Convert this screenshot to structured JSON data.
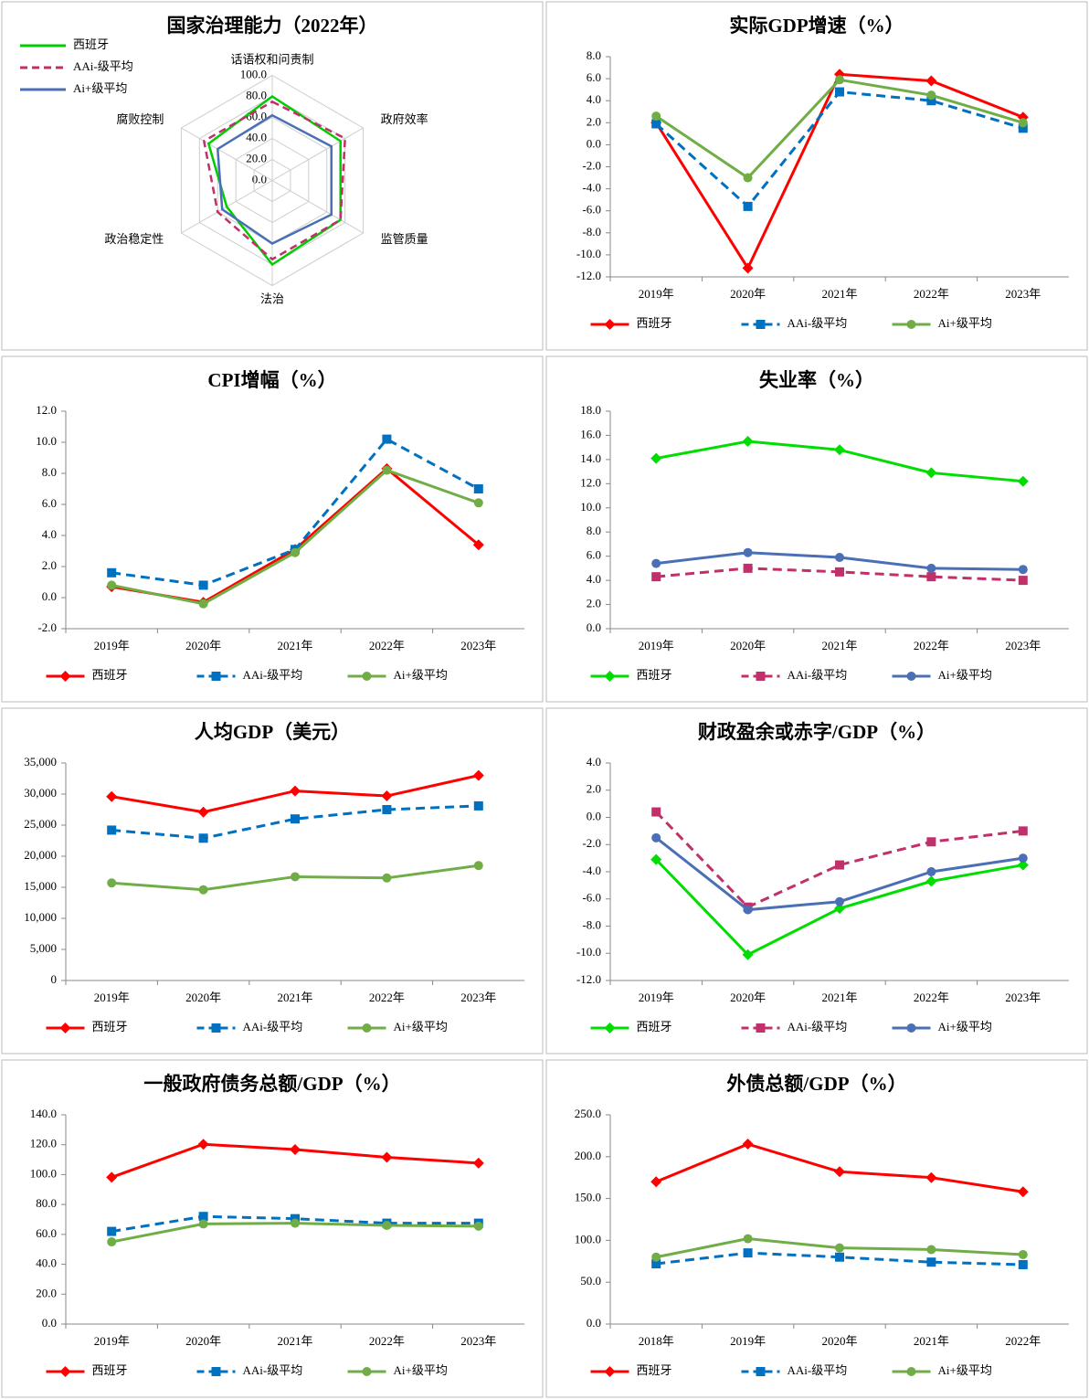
{
  "chart_data": [
    {
      "type": "radar",
      "title": "国家治理能力（2022年）",
      "categories": [
        "话语权和问责制",
        "政府效率",
        "监管质量",
        "法治",
        "政治稳定性",
        "腐败控制"
      ],
      "rlim": [
        0,
        100
      ],
      "rticks": [
        {
          "value": 0,
          "label": "0.0"
        },
        {
          "value": 20,
          "label": "20.0"
        },
        {
          "value": 40,
          "label": "40.0"
        },
        {
          "value": 60,
          "label": "60.0"
        },
        {
          "value": 80,
          "label": "80.0"
        },
        {
          "value": 100,
          "label": "100.0"
        }
      ],
      "series": [
        {
          "name": "西班牙",
          "color": "#00cc00",
          "dash": false,
          "marker": "none",
          "values": [
            80,
            75,
            75,
            80,
            50,
            70
          ]
        },
        {
          "name": "AAi-级平均",
          "color": "#c0306a",
          "dash": true,
          "marker": "none",
          "values": [
            75,
            80,
            75,
            75,
            60,
            75
          ]
        },
        {
          "name": "Ai+级平均",
          "color": "#4a6fb5",
          "dash": false,
          "marker": "none",
          "values": [
            62,
            65,
            65,
            60,
            55,
            60
          ]
        }
      ]
    },
    {
      "type": "line",
      "title": "实际GDP增速（%）",
      "categories": [
        "2019年",
        "2020年",
        "2021年",
        "2022年",
        "2023年"
      ],
      "ylim": [
        -12,
        8
      ],
      "yticks": [
        {
          "value": -12,
          "label": "-12.0"
        },
        {
          "value": -10,
          "label": "-10.0"
        },
        {
          "value": -8,
          "label": "-8.0"
        },
        {
          "value": -6,
          "label": "-6.0"
        },
        {
          "value": -4,
          "label": "-4.0"
        },
        {
          "value": -2,
          "label": "-2.0"
        },
        {
          "value": 0,
          "label": "0.0"
        },
        {
          "value": 2,
          "label": "2.0"
        },
        {
          "value": 4,
          "label": "4.0"
        },
        {
          "value": 6,
          "label": "6.0"
        },
        {
          "value": 8,
          "label": "8.0"
        }
      ],
      "series": [
        {
          "name": "西班牙",
          "color": "#ff0000",
          "dash": false,
          "marker": "diamond",
          "values": [
            2.0,
            -11.2,
            6.4,
            5.8,
            2.5
          ]
        },
        {
          "name": "AAi-级平均",
          "color": "#0070c0",
          "dash": true,
          "marker": "square",
          "values": [
            1.9,
            -5.6,
            4.8,
            4.0,
            1.5
          ]
        },
        {
          "name": "Ai+级平均",
          "color": "#70ad47",
          "dash": false,
          "marker": "circle",
          "values": [
            2.6,
            -3.0,
            5.9,
            4.5,
            2.0
          ]
        }
      ]
    },
    {
      "type": "line",
      "title": "CPI增幅（%）",
      "categories": [
        "2019年",
        "2020年",
        "2021年",
        "2022年",
        "2023年"
      ],
      "ylim": [
        -2,
        12
      ],
      "yticks": [
        {
          "value": -2,
          "label": "-2.0"
        },
        {
          "value": 0,
          "label": "0.0"
        },
        {
          "value": 2,
          "label": "2.0"
        },
        {
          "value": 4,
          "label": "4.0"
        },
        {
          "value": 6,
          "label": "6.0"
        },
        {
          "value": 8,
          "label": "8.0"
        },
        {
          "value": 10,
          "label": "10.0"
        },
        {
          "value": 12,
          "label": "12.0"
        }
      ],
      "series": [
        {
          "name": "西班牙",
          "color": "#ff0000",
          "dash": false,
          "marker": "diamond",
          "values": [
            0.7,
            -0.3,
            3.1,
            8.3,
            3.4
          ]
        },
        {
          "name": "AAi-级平均",
          "color": "#0070c0",
          "dash": true,
          "marker": "square",
          "values": [
            1.6,
            0.8,
            3.1,
            10.2,
            7.0
          ]
        },
        {
          "name": "Ai+级平均",
          "color": "#70ad47",
          "dash": false,
          "marker": "circle",
          "values": [
            0.8,
            -0.4,
            2.9,
            8.2,
            6.1
          ]
        }
      ]
    },
    {
      "type": "line",
      "title": "失业率（%）",
      "categories": [
        "2019年",
        "2020年",
        "2021年",
        "2022年",
        "2023年"
      ],
      "ylim": [
        0,
        18
      ],
      "yticks": [
        {
          "value": 0,
          "label": "0.0"
        },
        {
          "value": 2,
          "label": "2.0"
        },
        {
          "value": 4,
          "label": "4.0"
        },
        {
          "value": 6,
          "label": "6.0"
        },
        {
          "value": 8,
          "label": "8.0"
        },
        {
          "value": 10,
          "label": "10.0"
        },
        {
          "value": 12,
          "label": "12.0"
        },
        {
          "value": 14,
          "label": "14.0"
        },
        {
          "value": 16,
          "label": "16.0"
        },
        {
          "value": 18,
          "label": "18.0"
        }
      ],
      "series": [
        {
          "name": "西班牙",
          "color": "#00dd00",
          "dash": false,
          "marker": "diamond",
          "values": [
            14.1,
            15.5,
            14.8,
            12.9,
            12.2
          ]
        },
        {
          "name": "AAi-级平均",
          "color": "#c0306a",
          "dash": true,
          "marker": "square",
          "values": [
            4.3,
            5.0,
            4.7,
            4.3,
            4.0
          ]
        },
        {
          "name": "Ai+级平均",
          "color": "#4a6fb5",
          "dash": false,
          "marker": "circle",
          "values": [
            5.4,
            6.3,
            5.9,
            5.0,
            4.9
          ]
        }
      ]
    },
    {
      "type": "line",
      "title": "人均GDP（美元）",
      "categories": [
        "2019年",
        "2020年",
        "2021年",
        "2022年",
        "2023年"
      ],
      "ylim": [
        0,
        35000
      ],
      "yticks": [
        0,
        {
          "value": 5000,
          "label": "5,000"
        },
        {
          "value": 10000,
          "label": "10,000"
        },
        {
          "value": 15000,
          "label": "15,000"
        },
        {
          "value": 20000,
          "label": "20,000"
        },
        {
          "value": 25000,
          "label": "25,000"
        },
        {
          "value": 30000,
          "label": "30,000"
        },
        {
          "value": 35000,
          "label": "35,000"
        }
      ],
      "series": [
        {
          "name": "西班牙",
          "color": "#ff0000",
          "dash": false,
          "marker": "diamond",
          "values": [
            29600,
            27100,
            30500,
            29700,
            33000
          ]
        },
        {
          "name": "AAi-级平均",
          "color": "#0070c0",
          "dash": true,
          "marker": "square",
          "values": [
            24200,
            22900,
            26000,
            27500,
            28100
          ]
        },
        {
          "name": "Ai+级平均",
          "color": "#70ad47",
          "dash": false,
          "marker": "circle",
          "values": [
            15700,
            14600,
            16700,
            16500,
            18500
          ]
        }
      ]
    },
    {
      "type": "line",
      "title": "财政盈余或赤字/GDP（%）",
      "categories": [
        "2019年",
        "2020年",
        "2021年",
        "2022年",
        "2023年"
      ],
      "ylim": [
        -12,
        4
      ],
      "yticks": [
        {
          "value": -12,
          "label": "-12.0"
        },
        {
          "value": -10,
          "label": "-10.0"
        },
        {
          "value": -8,
          "label": "-8.0"
        },
        {
          "value": -6,
          "label": "-6.0"
        },
        {
          "value": -4,
          "label": "-4.0"
        },
        {
          "value": -2,
          "label": "-2.0"
        },
        {
          "value": 0,
          "label": "0.0"
        },
        {
          "value": 2,
          "label": "2.0"
        },
        {
          "value": 4,
          "label": "4.0"
        }
      ],
      "series": [
        {
          "name": "西班牙",
          "color": "#00dd00",
          "dash": false,
          "marker": "diamond",
          "values": [
            -3.1,
            -10.1,
            -6.7,
            -4.7,
            -3.5
          ]
        },
        {
          "name": "AAi-级平均",
          "color": "#c0306a",
          "dash": true,
          "marker": "square",
          "values": [
            0.4,
            -6.6,
            -3.5,
            -1.8,
            -1.0
          ]
        },
        {
          "name": "Ai+级平均",
          "color": "#4a6fb5",
          "dash": false,
          "marker": "circle",
          "values": [
            -1.5,
            -6.8,
            -6.2,
            -4.0,
            -3.0
          ]
        }
      ]
    },
    {
      "type": "line",
      "title": "一般政府债务总额/GDP（%）",
      "categories": [
        "2019年",
        "2020年",
        "2021年",
        "2022年",
        "2023年"
      ],
      "ylim": [
        0,
        140
      ],
      "yticks": [
        {
          "value": 0,
          "label": "0.0"
        },
        {
          "value": 20,
          "label": "20.0"
        },
        {
          "value": 40,
          "label": "40.0"
        },
        {
          "value": 60,
          "label": "60.0"
        },
        {
          "value": 80,
          "label": "80.0"
        },
        {
          "value": 100,
          "label": "100.0"
        },
        {
          "value": 120,
          "label": "120.0"
        },
        {
          "value": 140,
          "label": "140.0"
        }
      ],
      "series": [
        {
          "name": "西班牙",
          "color": "#ff0000",
          "dash": false,
          "marker": "diamond",
          "values": [
            98.2,
            120.3,
            116.8,
            111.6,
            107.7
          ]
        },
        {
          "name": "AAi-级平均",
          "color": "#0070c0",
          "dash": true,
          "marker": "square",
          "values": [
            62.0,
            72.0,
            70.5,
            67.5,
            67.5
          ]
        },
        {
          "name": "Ai+级平均",
          "color": "#70ad47",
          "dash": false,
          "marker": "circle",
          "values": [
            55.0,
            67.0,
            67.5,
            66.0,
            65.5
          ]
        }
      ]
    },
    {
      "type": "line",
      "title": "外债总额/GDP（%）",
      "categories": [
        "2018年",
        "2019年",
        "2020年",
        "2021年",
        "2022年"
      ],
      "ylim": [
        0,
        250
      ],
      "yticks": [
        {
          "value": 0,
          "label": "0.0"
        },
        {
          "value": 50,
          "label": "50.0"
        },
        {
          "value": 100,
          "label": "100.0"
        },
        {
          "value": 150,
          "label": "150.0"
        },
        {
          "value": 200,
          "label": "200.0"
        },
        {
          "value": 250,
          "label": "250.0"
        }
      ],
      "series": [
        {
          "name": "西班牙",
          "color": "#ff0000",
          "dash": false,
          "marker": "diamond",
          "values": [
            170,
            215,
            182,
            175,
            158
          ]
        },
        {
          "name": "AAi-级平均",
          "color": "#0070c0",
          "dash": true,
          "marker": "square",
          "values": [
            72,
            85,
            80,
            74,
            71
          ]
        },
        {
          "name": "Ai+级平均",
          "color": "#70ad47",
          "dash": false,
          "marker": "circle",
          "values": [
            80,
            102,
            91,
            89,
            83
          ]
        }
      ]
    }
  ]
}
